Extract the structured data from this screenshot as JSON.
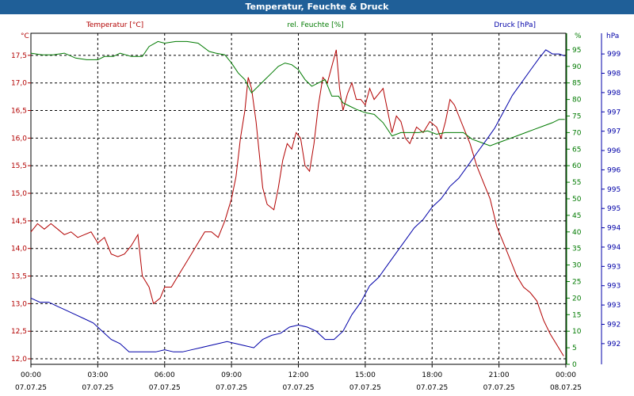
{
  "window_title": "Temperatur, Feuchte & Druck",
  "chart_data": {
    "type": "line",
    "title": "Temperatur, Feuchte & Druck",
    "colors": {
      "temp": "#b20000",
      "hum": "#007a00",
      "press": "#0000a8"
    },
    "axes": {
      "temp": {
        "unit": "°C",
        "label": "Temperatur [°C]",
        "min": 11.9,
        "max": 17.9,
        "ticks": [
          "12,0",
          "12,5",
          "13,0",
          "13,5",
          "14,0",
          "14,5",
          "15,0",
          "15,5",
          "16,0",
          "16,5",
          "17,0",
          "17,5"
        ]
      },
      "hum": {
        "unit": "%",
        "label": "rel. Feuchte [%]",
        "min": 0,
        "max": 100,
        "ticks": [
          "0",
          "5",
          "10",
          "15",
          "20",
          "25",
          "30",
          "35",
          "40",
          "45",
          "50",
          "55",
          "60",
          "65",
          "70",
          "75",
          "80",
          "85",
          "90",
          "95"
        ],
        "top_label": "%"
      },
      "press": {
        "unit": "hPa",
        "label": "Druck [hPa]",
        "min": 991.5,
        "max": 999.5,
        "ticks": [
          "992",
          "992",
          "993",
          "993",
          "993",
          "994",
          "994",
          "995",
          "995",
          "996",
          "996",
          "997",
          "997",
          "998",
          "998",
          "999"
        ]
      }
    },
    "x_ticks": [
      {
        "time": "00:00",
        "date": "07.07.25"
      },
      {
        "time": "03:00",
        "date": "07.07.25"
      },
      {
        "time": "06:00",
        "date": "07.07.25"
      },
      {
        "time": "09:00",
        "date": "07.07.25"
      },
      {
        "time": "12:00",
        "date": "07.07.25"
      },
      {
        "time": "15:00",
        "date": "07.07.25"
      },
      {
        "time": "18:00",
        "date": "07.07.25"
      },
      {
        "time": "21:00",
        "date": "07.07.25"
      },
      {
        "time": "00:00",
        "date": "08.07.25"
      }
    ],
    "x_range_hours": [
      0,
      24
    ],
    "series": [
      {
        "name": "Temperatur [°C]",
        "axis": "temp",
        "points": [
          [
            0,
            14.3
          ],
          [
            0.3,
            14.45
          ],
          [
            0.6,
            14.35
          ],
          [
            0.9,
            14.45
          ],
          [
            1.2,
            14.35
          ],
          [
            1.5,
            14.25
          ],
          [
            1.8,
            14.3
          ],
          [
            2.1,
            14.2
          ],
          [
            2.4,
            14.25
          ],
          [
            2.7,
            14.3
          ],
          [
            3.0,
            14.1
          ],
          [
            3.3,
            14.2
          ],
          [
            3.6,
            13.9
          ],
          [
            3.9,
            13.85
          ],
          [
            4.2,
            13.9
          ],
          [
            4.5,
            14.05
          ],
          [
            4.8,
            14.25
          ],
          [
            5.0,
            13.5
          ],
          [
            5.3,
            13.3
          ],
          [
            5.5,
            13.0
          ],
          [
            5.8,
            13.1
          ],
          [
            6.0,
            13.3
          ],
          [
            6.3,
            13.3
          ],
          [
            6.6,
            13.5
          ],
          [
            6.9,
            13.7
          ],
          [
            7.2,
            13.9
          ],
          [
            7.5,
            14.1
          ],
          [
            7.8,
            14.3
          ],
          [
            8.1,
            14.3
          ],
          [
            8.4,
            14.2
          ],
          [
            8.7,
            14.5
          ],
          [
            9.0,
            14.9
          ],
          [
            9.2,
            15.3
          ],
          [
            9.4,
            16.0
          ],
          [
            9.6,
            16.5
          ],
          [
            9.75,
            17.1
          ],
          [
            9.9,
            16.9
          ],
          [
            10.1,
            16.3
          ],
          [
            10.4,
            15.1
          ],
          [
            10.6,
            14.8
          ],
          [
            10.9,
            14.7
          ],
          [
            11.1,
            15.1
          ],
          [
            11.3,
            15.6
          ],
          [
            11.5,
            15.9
          ],
          [
            11.7,
            15.8
          ],
          [
            11.9,
            16.1
          ],
          [
            12.1,
            16.0
          ],
          [
            12.3,
            15.5
          ],
          [
            12.5,
            15.4
          ],
          [
            12.7,
            15.9
          ],
          [
            12.9,
            16.6
          ],
          [
            13.1,
            17.1
          ],
          [
            13.3,
            17.0
          ],
          [
            13.5,
            17.3
          ],
          [
            13.7,
            17.6
          ],
          [
            13.85,
            16.9
          ],
          [
            14.0,
            16.5
          ],
          [
            14.2,
            16.8
          ],
          [
            14.4,
            17.0
          ],
          [
            14.6,
            16.7
          ],
          [
            14.8,
            16.7
          ],
          [
            15.0,
            16.6
          ],
          [
            15.2,
            16.9
          ],
          [
            15.4,
            16.7
          ],
          [
            15.6,
            16.8
          ],
          [
            15.8,
            16.9
          ],
          [
            16.0,
            16.5
          ],
          [
            16.2,
            16.1
          ],
          [
            16.4,
            16.4
          ],
          [
            16.6,
            16.3
          ],
          [
            16.8,
            16.0
          ],
          [
            17.0,
            15.9
          ],
          [
            17.3,
            16.2
          ],
          [
            17.6,
            16.1
          ],
          [
            17.9,
            16.3
          ],
          [
            18.2,
            16.2
          ],
          [
            18.4,
            16.0
          ],
          [
            18.6,
            16.3
          ],
          [
            18.8,
            16.7
          ],
          [
            19.0,
            16.6
          ],
          [
            19.2,
            16.4
          ],
          [
            19.4,
            16.2
          ],
          [
            19.7,
            15.9
          ],
          [
            20.0,
            15.5
          ],
          [
            20.3,
            15.2
          ],
          [
            20.6,
            14.9
          ],
          [
            20.9,
            14.4
          ],
          [
            21.2,
            14.1
          ],
          [
            21.5,
            13.8
          ],
          [
            21.8,
            13.5
          ],
          [
            22.1,
            13.3
          ],
          [
            22.4,
            13.2
          ],
          [
            22.7,
            13.05
          ],
          [
            23.0,
            12.7
          ],
          [
            23.3,
            12.45
          ],
          [
            23.6,
            12.25
          ],
          [
            23.9,
            12.05
          ]
        ]
      },
      {
        "name": "rel. Feuchte [%]",
        "axis": "hum",
        "points": [
          [
            0,
            94
          ],
          [
            0.5,
            93.5
          ],
          [
            1.0,
            93.5
          ],
          [
            1.5,
            94
          ],
          [
            2.0,
            92.5
          ],
          [
            2.5,
            92
          ],
          [
            3.0,
            92
          ],
          [
            3.3,
            93
          ],
          [
            3.7,
            93
          ],
          [
            4.0,
            94
          ],
          [
            4.5,
            93
          ],
          [
            5.0,
            93
          ],
          [
            5.3,
            96
          ],
          [
            5.7,
            97.5
          ],
          [
            6.0,
            97
          ],
          [
            6.5,
            97.5
          ],
          [
            7.0,
            97.5
          ],
          [
            7.5,
            97
          ],
          [
            8.0,
            94.5
          ],
          [
            8.3,
            94
          ],
          [
            8.7,
            93.5
          ],
          [
            9.0,
            91
          ],
          [
            9.3,
            88
          ],
          [
            9.6,
            86
          ],
          [
            9.9,
            82
          ],
          [
            10.2,
            84
          ],
          [
            10.5,
            86
          ],
          [
            10.8,
            88
          ],
          [
            11.1,
            90
          ],
          [
            11.4,
            91
          ],
          [
            11.7,
            90.5
          ],
          [
            12.0,
            89
          ],
          [
            12.3,
            86
          ],
          [
            12.6,
            84
          ],
          [
            12.9,
            85
          ],
          [
            13.2,
            86
          ],
          [
            13.5,
            81
          ],
          [
            13.8,
            81
          ],
          [
            14.0,
            79
          ],
          [
            14.3,
            78
          ],
          [
            14.6,
            77
          ],
          [
            15.0,
            76
          ],
          [
            15.4,
            75.5
          ],
          [
            15.8,
            73
          ],
          [
            16.2,
            69
          ],
          [
            16.6,
            70
          ],
          [
            17.0,
            70
          ],
          [
            17.4,
            70
          ],
          [
            17.8,
            70.5
          ],
          [
            18.2,
            69.5
          ],
          [
            18.6,
            70
          ],
          [
            19.0,
            70
          ],
          [
            19.4,
            70
          ],
          [
            19.8,
            68
          ],
          [
            20.2,
            67
          ],
          [
            20.6,
            66
          ],
          [
            21.0,
            67
          ],
          [
            21.4,
            68
          ],
          [
            21.8,
            69
          ],
          [
            22.2,
            70
          ],
          [
            22.6,
            71
          ],
          [
            23.0,
            72
          ],
          [
            23.4,
            73
          ],
          [
            23.7,
            74
          ],
          [
            23.95,
            74
          ]
        ]
      },
      {
        "name": "Druck [hPa]",
        "axis": "press",
        "points": [
          [
            0,
            993.1
          ],
          [
            0.4,
            993.0
          ],
          [
            0.8,
            993.0
          ],
          [
            1.2,
            992.9
          ],
          [
            1.6,
            992.8
          ],
          [
            2.0,
            992.7
          ],
          [
            2.4,
            992.6
          ],
          [
            2.8,
            992.5
          ],
          [
            3.2,
            992.3
          ],
          [
            3.6,
            992.1
          ],
          [
            4.0,
            992.0
          ],
          [
            4.4,
            991.8
          ],
          [
            4.8,
            991.8
          ],
          [
            5.2,
            991.8
          ],
          [
            5.6,
            991.8
          ],
          [
            6.0,
            991.85
          ],
          [
            6.4,
            991.8
          ],
          [
            6.8,
            991.8
          ],
          [
            7.2,
            991.85
          ],
          [
            7.6,
            991.9
          ],
          [
            8.0,
            991.95
          ],
          [
            8.4,
            992.0
          ],
          [
            8.8,
            992.05
          ],
          [
            9.2,
            992.0
          ],
          [
            9.6,
            991.95
          ],
          [
            10.0,
            991.9
          ],
          [
            10.4,
            992.1
          ],
          [
            10.8,
            992.2
          ],
          [
            11.2,
            992.25
          ],
          [
            11.6,
            992.4
          ],
          [
            12.0,
            992.45
          ],
          [
            12.4,
            992.4
          ],
          [
            12.8,
            992.3
          ],
          [
            13.2,
            992.1
          ],
          [
            13.6,
            992.1
          ],
          [
            14.0,
            992.3
          ],
          [
            14.4,
            992.7
          ],
          [
            14.8,
            993.0
          ],
          [
            15.2,
            993.4
          ],
          [
            15.6,
            993.6
          ],
          [
            16.0,
            993.9
          ],
          [
            16.4,
            994.2
          ],
          [
            16.8,
            994.5
          ],
          [
            17.2,
            994.8
          ],
          [
            17.6,
            995.0
          ],
          [
            18.0,
            995.3
          ],
          [
            18.4,
            995.5
          ],
          [
            18.8,
            995.8
          ],
          [
            19.2,
            996.0
          ],
          [
            19.6,
            996.3
          ],
          [
            20.0,
            996.6
          ],
          [
            20.4,
            996.9
          ],
          [
            20.8,
            997.2
          ],
          [
            21.2,
            997.6
          ],
          [
            21.6,
            998.0
          ],
          [
            22.0,
            998.3
          ],
          [
            22.4,
            998.6
          ],
          [
            22.8,
            998.9
          ],
          [
            23.1,
            999.1
          ],
          [
            23.4,
            999.0
          ],
          [
            23.7,
            999.0
          ],
          [
            23.95,
            998.95
          ]
        ]
      }
    ]
  }
}
